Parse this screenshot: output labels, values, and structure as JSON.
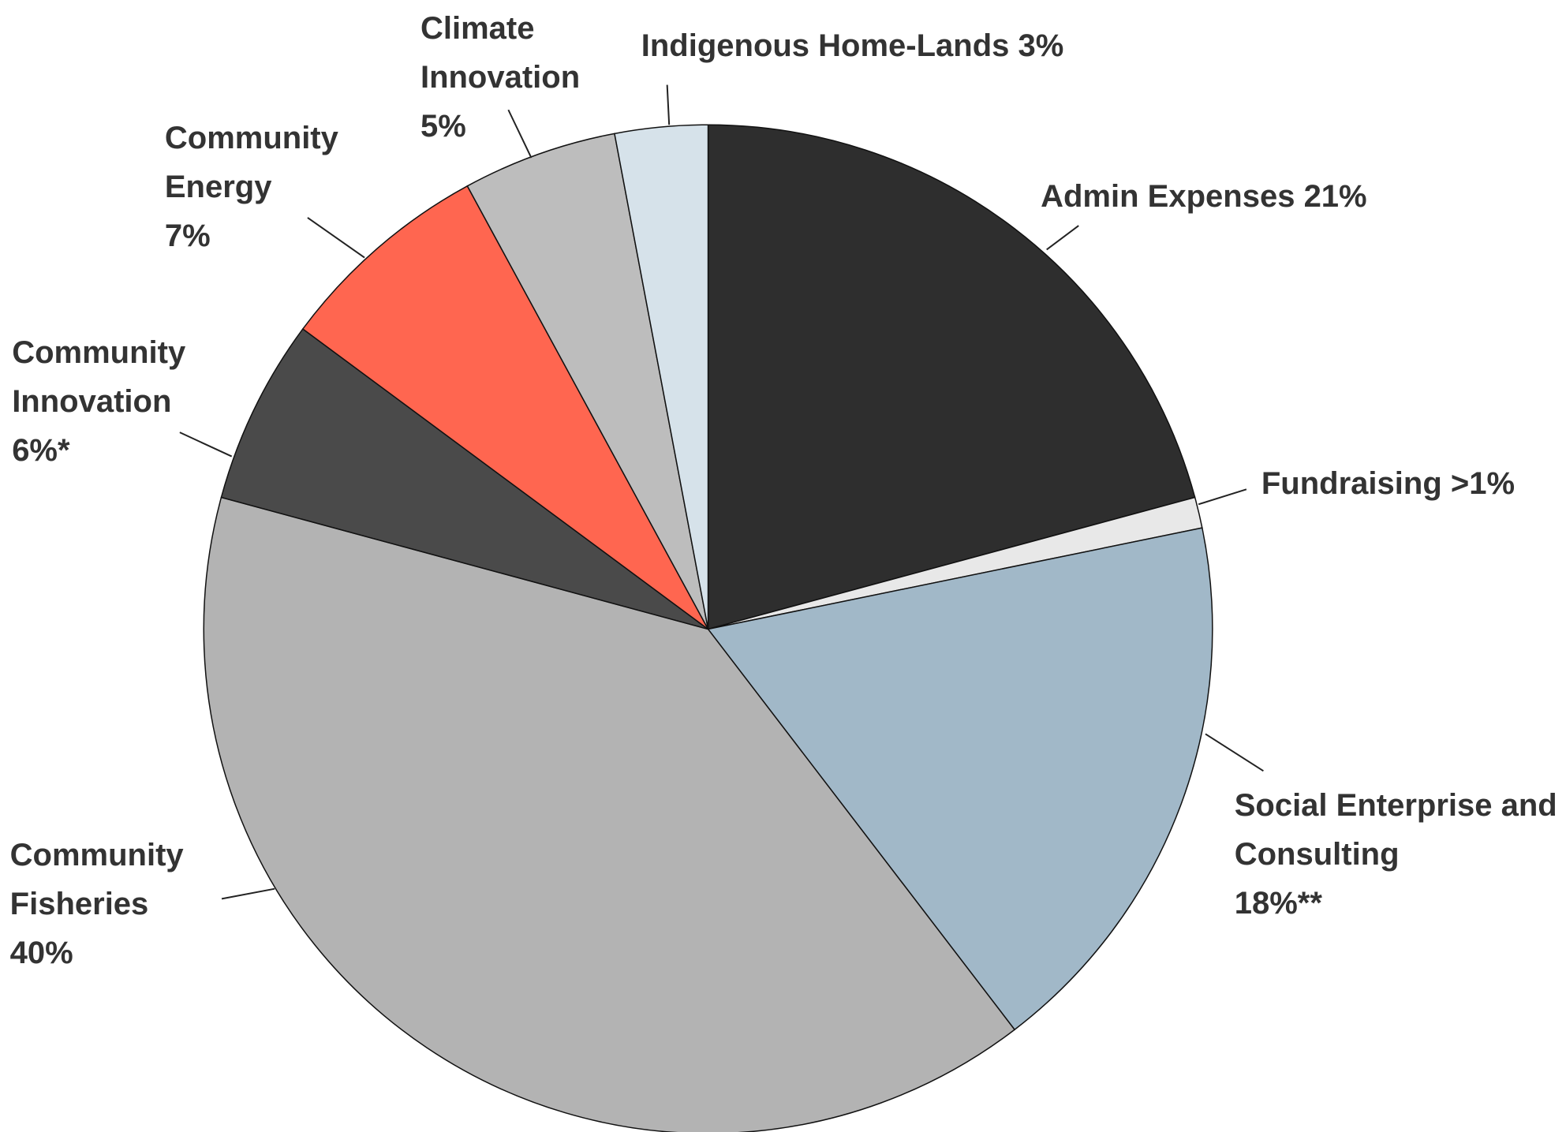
{
  "chart_data": {
    "type": "pie",
    "categories": [
      "Admin Expenses",
      "Fundraising",
      "Social Enterprise and Consulting",
      "Community Fisheries",
      "Community Innovation",
      "Community Energy",
      "Climate Innovation",
      "Indigenous Home-Lands"
    ],
    "values": [
      21,
      1,
      18,
      40,
      6,
      7,
      5,
      3
    ],
    "value_labels": [
      "21%",
      ">1%",
      "18%**",
      "40%",
      "6%*",
      "7%",
      "5%",
      "3%"
    ],
    "colors": [
      "#2e2e2e",
      "#e8e8e8",
      "#a1b8c8",
      "#b3b3b3",
      "#4a4a4a",
      "#ff6650",
      "#bdbdbd",
      "#d6e2ea"
    ]
  }
}
